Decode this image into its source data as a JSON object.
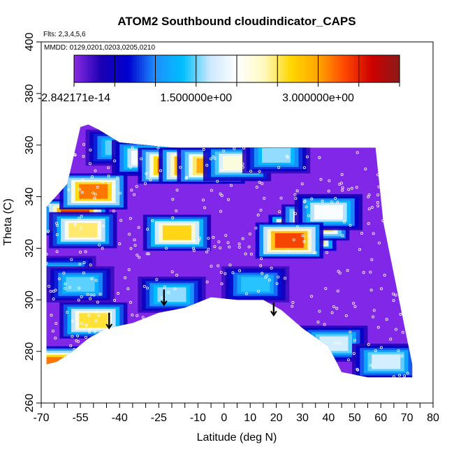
{
  "chart_data": {
    "type": "heatmap",
    "title": "ATOM2 Southbound cloudindicator_CAPS",
    "flights_note": "Flts: 2,3,4,5,6",
    "dates_note": "MMDD: 0129,0201,0203,0205,0210",
    "xlabel": "Latitude (deg N)",
    "ylabel": "Theta (C)",
    "xlim": [
      -70,
      80
    ],
    "ylim": [
      260,
      400
    ],
    "x_ticks": [
      -70,
      -55,
      -40,
      -25,
      -10,
      0,
      10,
      20,
      30,
      40,
      50,
      60,
      70,
      80
    ],
    "x_tick_labels": [
      "-70",
      "-55",
      "-40",
      "-25",
      "-10",
      "0",
      "10",
      "20",
      "30",
      "40",
      "50",
      "60",
      "70",
      "80"
    ],
    "x_minor_ticks": [
      -65,
      -60,
      -50,
      -45,
      -35,
      -30,
      -20,
      -15,
      -5,
      5,
      15,
      25,
      35,
      45,
      55,
      65,
      75
    ],
    "y_ticks": [
      260,
      280,
      300,
      320,
      340,
      360,
      380,
      400
    ],
    "y_tick_labels": [
      "260",
      "280",
      "300",
      "320",
      "340",
      "360",
      "380",
      "400"
    ],
    "colorbar": {
      "min": -2.842171e-14,
      "max": 4.0,
      "labels": [
        "-2.842171e-14",
        "1.500000e+00",
        "3.000000e+00"
      ],
      "label_values": [
        -2.842171e-14,
        1.5,
        3.0
      ],
      "segment_edges": [
        0,
        0.5,
        1.0,
        1.5,
        2.0,
        2.5,
        3.0,
        3.5,
        4.0
      ],
      "colors": [
        "#8a2be2",
        "#1a00b4",
        "#0000cd",
        "#1e90ff",
        "#00bfff",
        "#cce8ff",
        "#ffffff",
        "#fffac0",
        "#ffd700",
        "#ffa500",
        "#ff4500",
        "#cc0000",
        "#8b1a1a"
      ]
    },
    "background_color": "#8128e8",
    "domain_outline": {
      "left_edge": [
        [
          -68,
          275
        ],
        [
          -68,
          336
        ],
        [
          -60,
          345
        ],
        [
          -55,
          367
        ],
        [
          -52,
          368
        ],
        [
          -48,
          366
        ],
        [
          -40,
          361
        ],
        [
          -20,
          359
        ],
        [
          0,
          359
        ],
        [
          20,
          359
        ],
        [
          40,
          359
        ],
        [
          55,
          359
        ],
        [
          58,
          359
        ]
      ],
      "right_edge": [
        [
          58,
          359
        ],
        [
          61,
          330
        ],
        [
          65,
          310
        ],
        [
          69,
          290
        ],
        [
          72,
          275
        ],
        [
          72,
          270
        ]
      ],
      "bottom_edge": [
        [
          72,
          270
        ],
        [
          55,
          270
        ],
        [
          45,
          272
        ],
        [
          40,
          282
        ],
        [
          30,
          289
        ],
        [
          22,
          296
        ],
        [
          15,
          300
        ],
        [
          5,
          300
        ],
        [
          -5,
          301
        ],
        [
          -15,
          297
        ],
        [
          -25,
          295
        ],
        [
          -35,
          291
        ],
        [
          -45,
          289
        ],
        [
          -52,
          285
        ],
        [
          -58,
          280
        ],
        [
          -64,
          276
        ],
        [
          -68,
          275
        ]
      ]
    },
    "cloud_cells": [
      {
        "lat": -40,
        "theta": 359,
        "value": 1.5
      },
      {
        "lat": -30,
        "theta": 355,
        "value": 2.0
      },
      {
        "lat": -20,
        "theta": 352,
        "value": 3.2
      },
      {
        "lat": -12,
        "theta": 352,
        "value": 3.5
      },
      {
        "lat": -5,
        "theta": 352,
        "value": 3.0
      },
      {
        "lat": 5,
        "theta": 353,
        "value": 2.2
      },
      {
        "lat": 20,
        "theta": 356,
        "value": 1.6
      },
      {
        "lat": -57,
        "theta": 332,
        "value": 3.5
      },
      {
        "lat": -54,
        "theta": 327,
        "value": 2.5
      },
      {
        "lat": -50,
        "theta": 342,
        "value": 3.2
      },
      {
        "lat": 30,
        "theta": 326,
        "value": 3.9
      },
      {
        "lat": 35,
        "theta": 330,
        "value": 3.0
      },
      {
        "lat": 40,
        "theta": 334,
        "value": 2.0
      },
      {
        "lat": 25,
        "theta": 323,
        "value": 3.4
      },
      {
        "lat": -18,
        "theta": 326,
        "value": 2.7
      },
      {
        "lat": -62,
        "theta": 310,
        "value": 1.5
      },
      {
        "lat": -55,
        "theta": 306,
        "value": 1.5
      },
      {
        "lat": -20,
        "theta": 302,
        "value": 1.6
      },
      {
        "lat": 12,
        "theta": 306,
        "value": 1.4
      },
      {
        "lat": -50,
        "theta": 292,
        "value": 2.6
      },
      {
        "lat": -66,
        "theta": 275,
        "value": 3.2
      },
      {
        "lat": 42,
        "theta": 283,
        "value": 1.8
      },
      {
        "lat": 62,
        "theta": 276,
        "value": 1.8
      }
    ],
    "arrows": [
      {
        "lat": -44,
        "theta_top": 295,
        "theta_bottom": 289
      },
      {
        "lat": -23,
        "theta_top": 304,
        "theta_bottom": 298
      },
      {
        "lat": 19,
        "theta_top": 299,
        "theta_bottom": 294
      }
    ]
  }
}
